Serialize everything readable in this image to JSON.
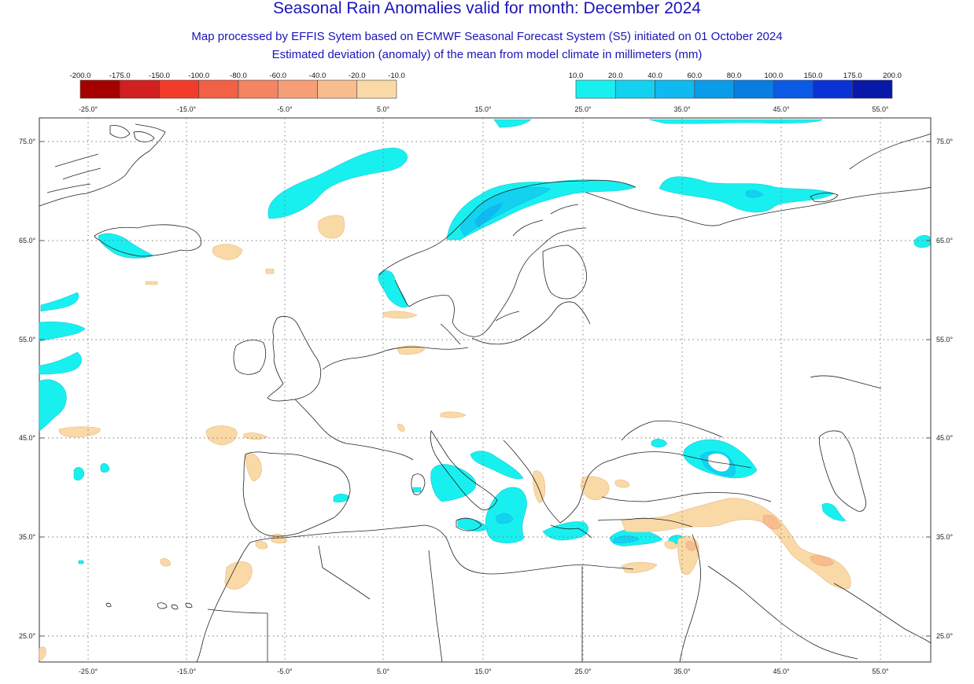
{
  "title": "Seasonal Rain Anomalies valid for month: December 2024",
  "subtitle1": "Map processed by EFFIS Sytem based on ECMWF Seasonal Forecast System (S5) initiated on 01 October 2024",
  "subtitle2": "Estimated deviation (anomaly) of the mean from model climate in millimeters (mm)",
  "legend_negative": {
    "labels": [
      "-200.0",
      "-175.0",
      "-150.0",
      "-100.0",
      "-80.0",
      "-60.0",
      "-40.0",
      "-20.0",
      "-10.0"
    ],
    "colors": [
      "#a50000",
      "#d21f1f",
      "#f23b2a",
      "#f26045",
      "#f58462",
      "#f69f77",
      "#f8bc8f",
      "#f9d9a6"
    ]
  },
  "legend_positive": {
    "labels": [
      "10.0",
      "20.0",
      "40.0",
      "60.0",
      "80.0",
      "100.0",
      "150.0",
      "175.0",
      "200.0"
    ],
    "colors": [
      "#18f0f0",
      "#12d2f0",
      "#0ebaf0",
      "#0a9ce8",
      "#0a7ee0",
      "#0a5ae6",
      "#0a33d6",
      "#0818a8"
    ]
  },
  "axes": {
    "x_labels": [
      "-25.0°",
      "-15.0°",
      "-5.0°",
      "5.0°",
      "15.0°",
      "25.0°",
      "35.0°",
      "45.0°",
      "55.0°"
    ],
    "y_labels": [
      "75.0°",
      "65.0°",
      "55.0°",
      "45.0°",
      "35.0°",
      "25.0°"
    ]
  },
  "colors": {
    "title": "#1a14b8",
    "coast": "#222222",
    "frame": "#555555",
    "grid": "#777777"
  }
}
